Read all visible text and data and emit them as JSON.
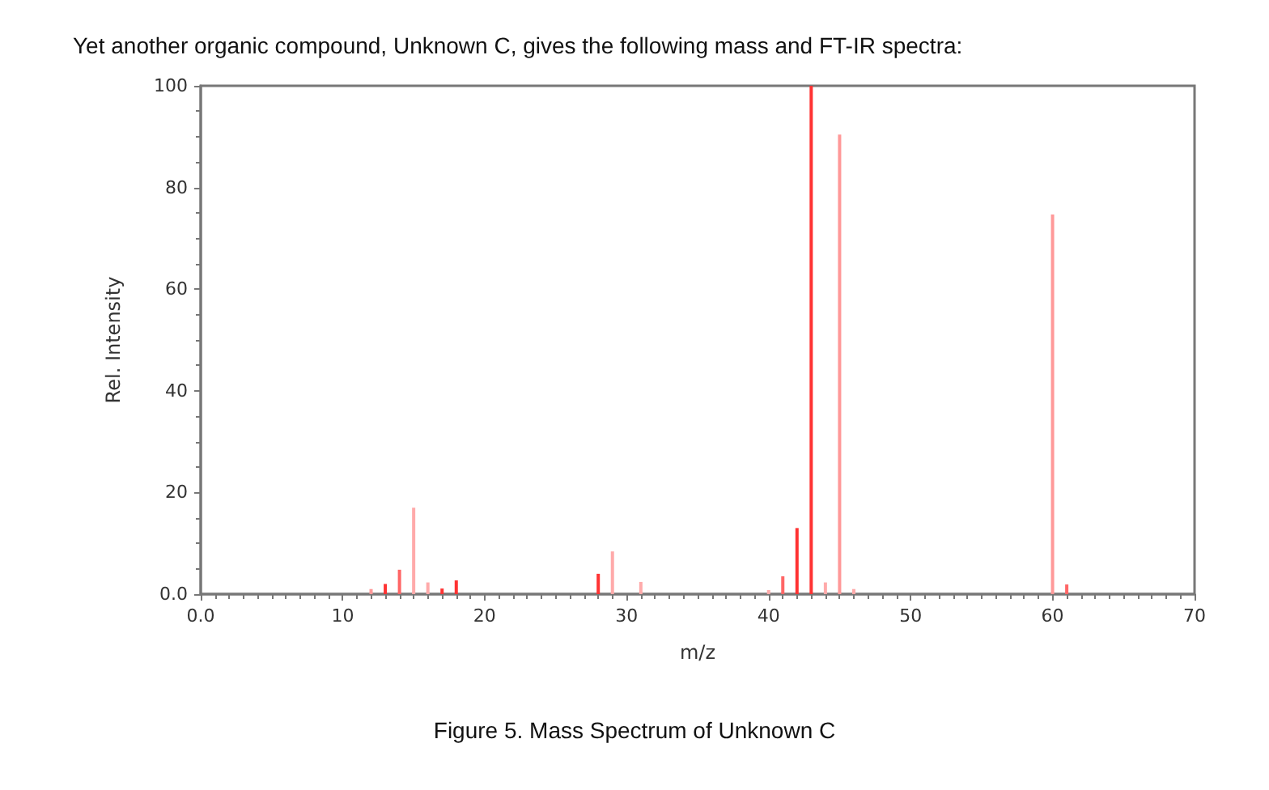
{
  "chart_data": {
    "type": "bar",
    "title": "Yet another organic compound, Unknown C, gives the following mass and FT-IR spectra:",
    "xlabel": "m/z",
    "ylabel": "Rel. Intensity",
    "annotations": [
      "Figure 5. Mass Spectrum of Unknown C"
    ],
    "x": [
      12,
      13,
      14,
      15,
      16,
      17,
      18,
      26,
      28,
      29,
      30,
      31,
      40,
      41,
      42,
      43,
      44,
      45,
      46,
      60,
      61
    ],
    "values": [
      1,
      2,
      4.8,
      17,
      2.3,
      1.1,
      2.7,
      null,
      4,
      8.4,
      null,
      2.4,
      0.8,
      3.5,
      13,
      100,
      2.3,
      90.4,
      1,
      74.7,
      1.9
    ],
    "colors": [
      "#ff9999",
      "#ff3333",
      "#ff6666",
      "#ffaaaa",
      "#ffaaaa",
      "#ff3333",
      "#ff3333",
      "#ffaaaa",
      "#ff3333",
      "#ffaaaa",
      "#ffaaaa",
      "#ffaaaa",
      "#ffaaaa",
      "#ff6666",
      "#ff3333",
      "#ff3333",
      "#ffaaaa",
      "#ff9999",
      "#ffaaaa",
      "#ff9999",
      "#ff6666"
    ],
    "xlim": [
      0,
      70
    ],
    "xticks": [
      {
        "value": 0,
        "label": "0.0"
      },
      10,
      20,
      30,
      40,
      50,
      60,
      70
    ],
    "ylim": [
      0,
      100
    ],
    "yticks": [
      {
        "value": 0,
        "label": "0.0"
      },
      20,
      40,
      60,
      80,
      100
    ],
    "grid": false
  }
}
